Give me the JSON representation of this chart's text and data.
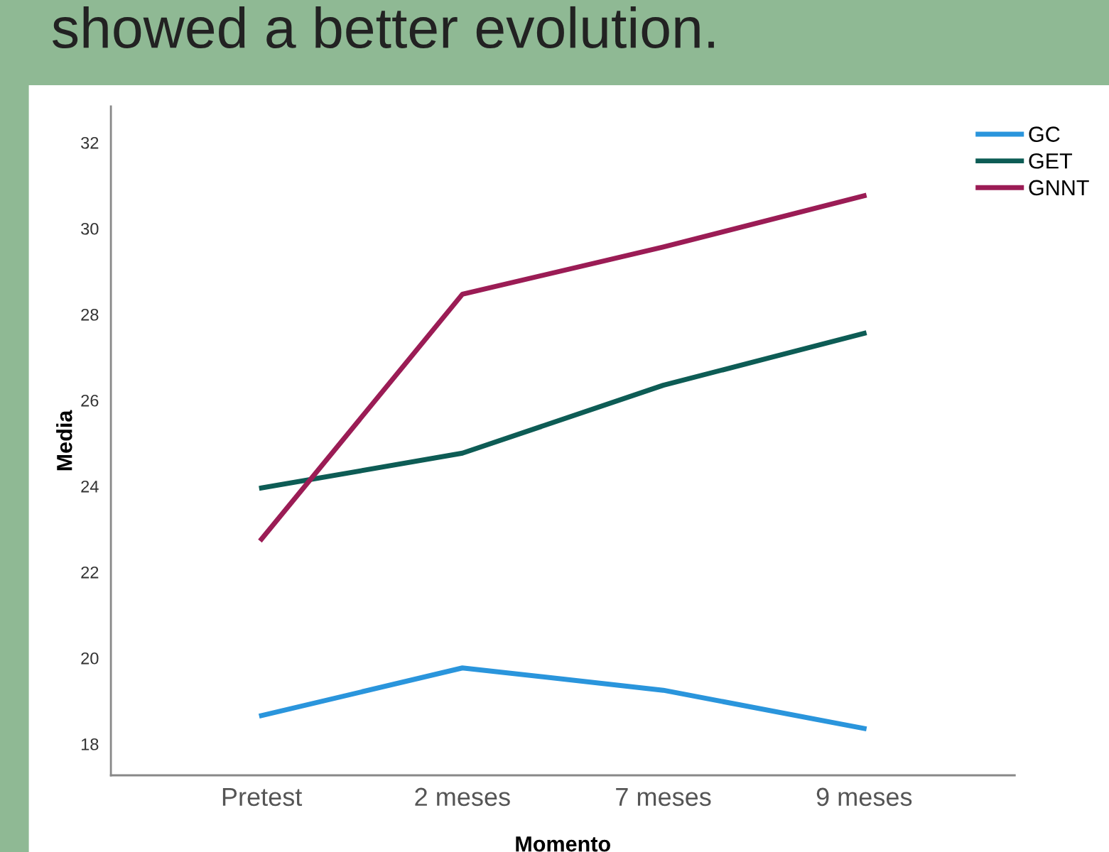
{
  "chart_data": {
    "type": "line",
    "title": "showed a better evolution.",
    "xlabel": "Momento",
    "ylabel": "Media",
    "categories": [
      "Pretest",
      "2 meses",
      "7 meses",
      "9 meses"
    ],
    "series": [
      {
        "name": "GC",
        "color": "#2a95dc",
        "values": [
          18.66,
          19.77,
          19.25,
          18.36
        ]
      },
      {
        "name": "GET",
        "color": "#0d5c55",
        "values": [
          23.96,
          24.77,
          26.35,
          27.56
        ]
      },
      {
        "name": "GNNT",
        "color": "#9b1c55",
        "values": [
          22.77,
          28.47,
          29.57,
          30.76
        ]
      }
    ],
    "ylim": [
      17.27,
      32.84
    ],
    "yticks": [
      18,
      20,
      22,
      24,
      26,
      28,
      30,
      32
    ],
    "grid": false,
    "legend": "top right",
    "marker": "none",
    "line_style": "solid"
  }
}
